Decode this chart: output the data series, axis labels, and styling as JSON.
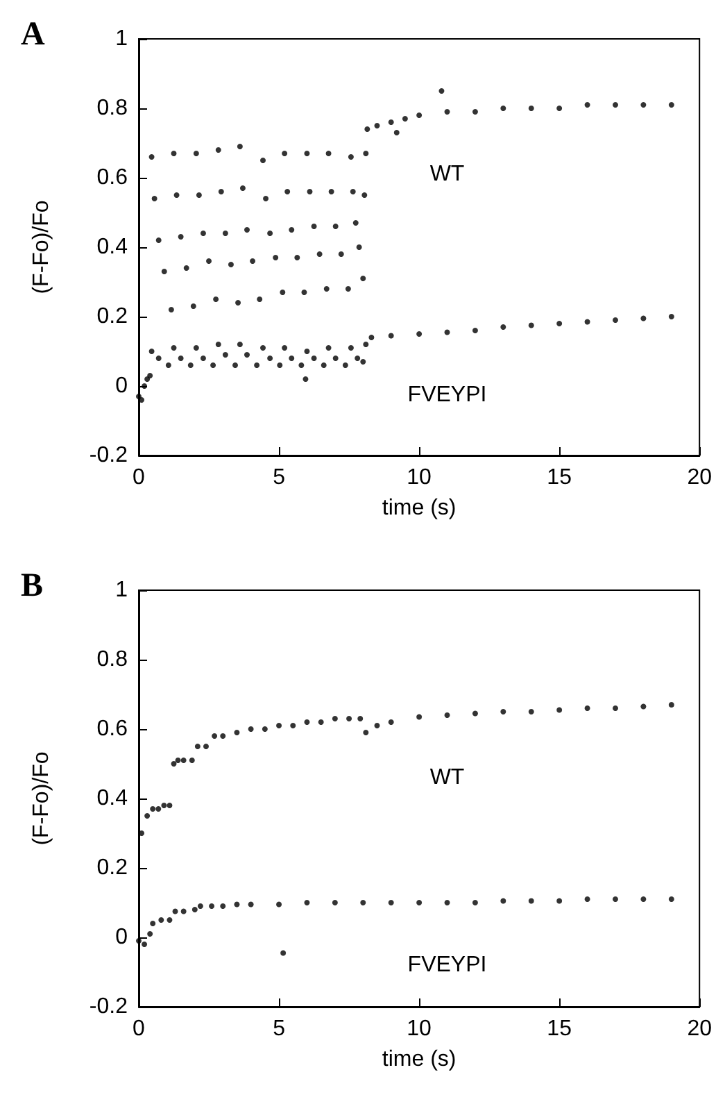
{
  "chart_data": [
    {
      "type": "scatter",
      "title": "A",
      "xlabel": "time (s)",
      "ylabel": "(F-Fo)/Fo",
      "xlim": [
        0,
        20
      ],
      "xticks": [
        0,
        5,
        10,
        15,
        20
      ],
      "ylim": [
        -0.2,
        1
      ],
      "yticks": [
        -0.2,
        0,
        0.2,
        0.4,
        0.6,
        0.8,
        1
      ],
      "grid": false,
      "legend": false,
      "marker": "circle",
      "series": [
        {
          "name": "WT",
          "color": "#000000",
          "x": [
            0.46,
            0.56,
            0.71,
            0.91,
            1.16,
            1.25,
            1.35,
            1.5,
            1.7,
            1.95,
            2.05,
            2.15,
            2.3,
            2.5,
            2.75,
            2.84,
            2.94,
            3.09,
            3.29,
            3.54,
            3.61,
            3.71,
            3.86,
            4.06,
            4.31,
            4.43,
            4.53,
            4.68,
            4.88,
            5.13,
            5.2,
            5.3,
            5.45,
            5.65,
            5.9,
            6.0,
            6.1,
            6.25,
            6.45,
            6.7,
            6.77,
            6.87,
            7.02,
            7.22,
            7.47,
            7.57,
            7.64,
            7.74,
            7.86,
            8.0,
            8.05,
            8.1,
            8.15,
            8.5,
            9,
            9.2,
            9.5,
            10,
            10.8,
            11,
            12,
            13,
            14,
            15,
            16,
            17,
            18,
            19
          ],
          "values": [
            0.66,
            0.54,
            0.42,
            0.33,
            0.22,
            0.67,
            0.55,
            0.43,
            0.34,
            0.23,
            0.67,
            0.55,
            0.44,
            0.36,
            0.25,
            0.68,
            0.56,
            0.44,
            0.35,
            0.24,
            0.69,
            0.57,
            0.45,
            0.36,
            0.25,
            0.65,
            0.54,
            0.44,
            0.37,
            0.27,
            0.67,
            0.56,
            0.45,
            0.37,
            0.27,
            0.67,
            0.56,
            0.46,
            0.38,
            0.28,
            0.67,
            0.56,
            0.46,
            0.38,
            0.28,
            0.66,
            0.56,
            0.47,
            0.4,
            0.31,
            0.55,
            0.67,
            0.74,
            0.75,
            0.76,
            0.73,
            0.77,
            0.78,
            0.85,
            0.79,
            0.79,
            0.8,
            0.8,
            0.8,
            0.81,
            0.81,
            0.81,
            0.81
          ]
        },
        {
          "name": "FVEYPI",
          "color": "#000000",
          "x": [
            0,
            0.1,
            0.2,
            0.3,
            0.4,
            0.46,
            0.71,
            1.06,
            1.25,
            1.5,
            1.85,
            2.05,
            2.3,
            2.65,
            2.84,
            3.09,
            3.44,
            3.61,
            3.86,
            4.21,
            4.43,
            4.68,
            5.03,
            5.2,
            5.45,
            5.8,
            5.95,
            6.0,
            6.25,
            6.6,
            6.77,
            7.02,
            7.37,
            7.57,
            7.8,
            8.0,
            8.1,
            8.3,
            9,
            10,
            11,
            12,
            13,
            14,
            15,
            16,
            17,
            18,
            19
          ],
          "values": [
            -0.03,
            -0.04,
            0,
            0.02,
            0.03,
            0.1,
            0.08,
            0.06,
            0.11,
            0.08,
            0.06,
            0.11,
            0.08,
            0.06,
            0.12,
            0.09,
            0.06,
            0.12,
            0.09,
            0.06,
            0.11,
            0.08,
            0.06,
            0.11,
            0.08,
            0.06,
            0.02,
            0.1,
            0.08,
            0.06,
            0.11,
            0.08,
            0.06,
            0.11,
            0.08,
            0.07,
            0.12,
            0.14,
            0.145,
            0.15,
            0.155,
            0.16,
            0.17,
            0.175,
            0.18,
            0.185,
            0.19,
            0.195,
            0.2
          ]
        }
      ]
    },
    {
      "type": "scatter",
      "title": "B",
      "xlabel": "time (s)",
      "ylabel": "(F-Fo)/Fo",
      "xlim": [
        0,
        20
      ],
      "xticks": [
        0,
        5,
        10,
        15,
        20
      ],
      "ylim": [
        -0.2,
        1
      ],
      "yticks": [
        -0.2,
        0,
        0.2,
        0.4,
        0.6,
        0.8,
        1
      ],
      "grid": false,
      "legend": false,
      "marker": "circle",
      "series": [
        {
          "name": "WT",
          "color": "#000000",
          "x": [
            0.1,
            0.3,
            0.5,
            0.7,
            0.9,
            1.1,
            1.25,
            1.4,
            1.6,
            1.9,
            2.1,
            2.4,
            2.7,
            3.0,
            3.5,
            4,
            4.5,
            5,
            5.5,
            6,
            6.5,
            7,
            7.5,
            7.9,
            8.1,
            8.5,
            9,
            10,
            11,
            12,
            13,
            14,
            15,
            16,
            17,
            18,
            19
          ],
          "values": [
            0.3,
            0.35,
            0.37,
            0.37,
            0.38,
            0.38,
            0.5,
            0.51,
            0.51,
            0.51,
            0.55,
            0.55,
            0.58,
            0.58,
            0.59,
            0.6,
            0.6,
            0.61,
            0.61,
            0.62,
            0.62,
            0.63,
            0.63,
            0.63,
            0.59,
            0.61,
            0.62,
            0.635,
            0.64,
            0.645,
            0.65,
            0.65,
            0.655,
            0.66,
            0.66,
            0.665,
            0.67
          ]
        },
        {
          "name": "FVEYPI",
          "color": "#000000",
          "x": [
            0,
            0.2,
            0.4,
            0.5,
            0.8,
            1.1,
            1.3,
            1.6,
            2.0,
            2.2,
            2.6,
            3,
            3.5,
            4,
            5,
            5.15,
            6,
            7,
            8,
            9,
            10,
            11,
            12,
            13,
            14,
            15,
            16,
            17,
            18,
            19
          ],
          "values": [
            -0.01,
            -0.02,
            0.01,
            0.04,
            0.05,
            0.05,
            0.075,
            0.075,
            0.08,
            0.09,
            0.09,
            0.09,
            0.095,
            0.095,
            0.095,
            -0.045,
            0.1,
            0.1,
            0.1,
            0.1,
            0.1,
            0.1,
            0.1,
            0.105,
            0.105,
            0.105,
            0.11,
            0.11,
            0.11,
            0.11
          ]
        }
      ]
    }
  ]
}
